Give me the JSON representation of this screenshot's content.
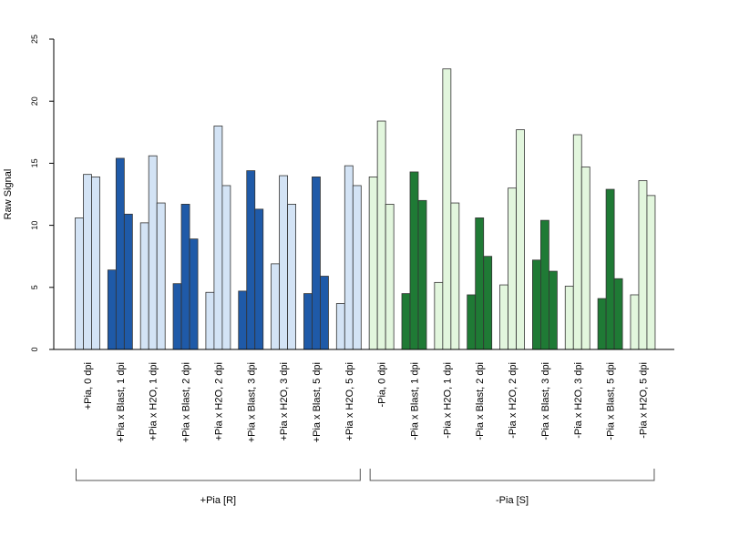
{
  "chart_data": {
    "type": "bar",
    "title": "",
    "xlabel": "",
    "ylabel": "Raw Signal",
    "ylim": [
      0,
      25
    ],
    "yticks": [
      0,
      5,
      10,
      15,
      20,
      25
    ],
    "grid": false,
    "colors": {
      "pia_plus_light": "#d3e3f5",
      "pia_plus_dark": "#1f5aa8",
      "pia_minus_light": "#e2f6dd",
      "pia_minus_dark": "#1f7a35",
      "bar_border": "#333333"
    },
    "categories": [
      "+Pia, 0 dpi",
      "+Pia x Blast, 1 dpi",
      "+Pia x H2O, 1 dpi",
      "+Pia x Blast, 2 dpi",
      "+Pia x H2O, 2 dpi",
      "+Pia x Blast, 3 dpi",
      "+Pia x H2O, 3 dpi",
      "+Pia x Blast, 5 dpi",
      "+Pia x H2O, 5 dpi",
      "-Pia, 0 dpi",
      "-Pia x Blast, 1 dpi",
      "-Pia x H2O, 1 dpi",
      "-Pia x Blast, 2 dpi",
      "-Pia x H2O, 2 dpi",
      "-Pia x Blast, 3 dpi",
      "-Pia x H2O, 3 dpi",
      "-Pia x Blast, 5 dpi",
      "-Pia x H2O, 5 dpi"
    ],
    "category_color_keys": [
      "pia_plus_light",
      "pia_plus_dark",
      "pia_plus_light",
      "pia_plus_dark",
      "pia_plus_light",
      "pia_plus_dark",
      "pia_plus_light",
      "pia_plus_dark",
      "pia_plus_light",
      "pia_minus_light",
      "pia_minus_dark",
      "pia_minus_light",
      "pia_minus_dark",
      "pia_minus_light",
      "pia_minus_dark",
      "pia_minus_light",
      "pia_minus_dark",
      "pia_minus_light"
    ],
    "values": [
      [
        10.6,
        14.1,
        13.9
      ],
      [
        6.4,
        15.4,
        10.9
      ],
      [
        10.2,
        15.6,
        11.8
      ],
      [
        5.3,
        11.7,
        8.9
      ],
      [
        4.6,
        18.0,
        13.2
      ],
      [
        4.7,
        14.4,
        11.3
      ],
      [
        6.9,
        14.0,
        11.7
      ],
      [
        4.5,
        13.9,
        5.9
      ],
      [
        3.7,
        14.8,
        13.2
      ],
      [
        13.9,
        18.4,
        11.7
      ],
      [
        4.5,
        14.3,
        12.0
      ],
      [
        5.4,
        22.6,
        11.8
      ],
      [
        4.4,
        10.6,
        7.5
      ],
      [
        5.2,
        13.0,
        17.7
      ],
      [
        7.2,
        10.4,
        6.3
      ],
      [
        5.1,
        17.3,
        14.7
      ],
      [
        4.1,
        12.9,
        5.7
      ],
      [
        4.4,
        13.6,
        12.4
      ]
    ],
    "groups": [
      {
        "label": "+Pia [R]",
        "first": 0,
        "last": 8
      },
      {
        "label": "-Pia [S]",
        "first": 9,
        "last": 17
      }
    ]
  }
}
